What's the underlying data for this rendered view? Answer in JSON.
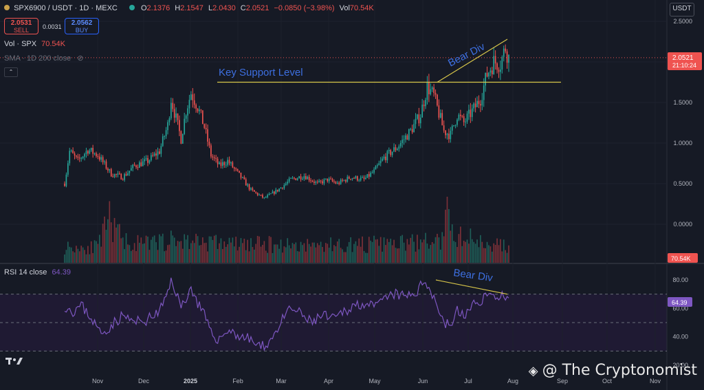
{
  "header": {
    "symbol": "SPX6900 / USDT · 1D · MEXC",
    "o_label": "O",
    "o_value": "2.1376",
    "h_label": "H",
    "h_value": "2.1547",
    "l_label": "L",
    "l_value": "2.0430",
    "c_label": "C",
    "c_value": "2.0521",
    "change": "−0.0850 (−3.98%)",
    "vol_label": "Vol",
    "vol_value": "70.54K"
  },
  "trade": {
    "sell_price": "2.0531",
    "sell_label": "SELL",
    "spread": "0.0031",
    "buy_price": "2.0562",
    "buy_label": "BUY"
  },
  "indicators": {
    "vol_label": "Vol · SPX",
    "vol_value": "70.54K",
    "sma_label": "SMA · 1D 200 close",
    "rsi_label": "RSI 14 close",
    "rsi_value": "64.39"
  },
  "unit_button": "USDT",
  "price_badge": {
    "price": "2.0521",
    "countdown": "21:10:24"
  },
  "volume_badge": "70.54K",
  "rsi_badge": "64.39",
  "watermark": "@ The Cryptonomist",
  "colors": {
    "up": "#26a69a",
    "down": "#ef5350",
    "trendline": "#d9c74a",
    "annotation": "#3d6fe0",
    "rsi_line": "#7e57c2"
  },
  "chart_data": {
    "type": "candlestick",
    "price_axis": {
      "ticks": [
        "2.5000",
        "2.0000",
        "1.5000",
        "1.0000",
        "0.5000",
        "0.0000"
      ],
      "ylim": [
        -0.2,
        2.5
      ]
    },
    "rsi_axis": {
      "ticks": [
        "80.00",
        "60.00",
        "40.00",
        "20.00"
      ],
      "upper_band": 70,
      "middle_band": 50,
      "lower_band": 30
    },
    "x_axis": {
      "ticks": [
        "Nov",
        "Dec",
        "2025",
        "Feb",
        "Mar",
        "Apr",
        "May",
        "Jun",
        "Jul",
        "Aug",
        "Sep",
        "Oct",
        "Nov"
      ]
    },
    "annotations": [
      {
        "text": "Key Support Level"
      },
      {
        "text": "Bear Div"
      },
      {
        "text": "Bear Div"
      }
    ],
    "price_keypoints": [
      [
        0,
        0.5
      ],
      [
        3,
        0.9
      ],
      [
        8,
        0.78
      ],
      [
        14,
        0.92
      ],
      [
        20,
        0.85
      ],
      [
        28,
        0.62
      ],
      [
        35,
        0.58
      ],
      [
        42,
        0.72
      ],
      [
        50,
        0.78
      ],
      [
        57,
        0.9
      ],
      [
        62,
        1.22
      ],
      [
        64,
        1.55
      ],
      [
        67,
        1.3
      ],
      [
        70,
        1.05
      ],
      [
        73,
        1.4
      ],
      [
        76,
        1.62
      ],
      [
        80,
        1.45
      ],
      [
        84,
        1.2
      ],
      [
        88,
        0.85
      ],
      [
        93,
        0.72
      ],
      [
        98,
        0.78
      ],
      [
        106,
        0.58
      ],
      [
        112,
        0.42
      ],
      [
        120,
        0.32
      ],
      [
        128,
        0.42
      ],
      [
        136,
        0.55
      ],
      [
        144,
        0.6
      ],
      [
        152,
        0.5
      ],
      [
        158,
        0.55
      ],
      [
        164,
        0.5
      ],
      [
        172,
        0.58
      ],
      [
        180,
        0.55
      ],
      [
        186,
        0.65
      ],
      [
        192,
        0.82
      ],
      [
        200,
        0.95
      ],
      [
        208,
        1.15
      ],
      [
        214,
        1.35
      ],
      [
        218,
        1.7
      ],
      [
        222,
        1.58
      ],
      [
        228,
        1.15
      ],
      [
        232,
        1.1
      ],
      [
        236,
        1.35
      ],
      [
        240,
        1.25
      ],
      [
        246,
        1.42
      ],
      [
        250,
        1.55
      ],
      [
        254,
        1.85
      ],
      [
        258,
        2.0
      ],
      [
        262,
        1.98
      ],
      [
        265,
        2.18
      ],
      [
        267,
        2.05
      ]
    ],
    "volume_keypoints": [
      [
        0,
        0.25
      ],
      [
        20,
        0.25
      ],
      [
        28,
        0.75
      ],
      [
        30,
        0.5
      ],
      [
        40,
        0.3
      ],
      [
        50,
        0.3
      ],
      [
        60,
        0.35
      ],
      [
        80,
        0.35
      ],
      [
        100,
        0.3
      ],
      [
        150,
        0.28
      ],
      [
        200,
        0.3
      ],
      [
        228,
        0.35
      ],
      [
        230,
        1.0
      ],
      [
        232,
        0.45
      ],
      [
        267,
        0.25
      ]
    ],
    "rsi_keypoints": [
      [
        0,
        62
      ],
      [
        5,
        58
      ],
      [
        10,
        62
      ],
      [
        15,
        55
      ],
      [
        22,
        42
      ],
      [
        28,
        48
      ],
      [
        35,
        55
      ],
      [
        42,
        50
      ],
      [
        50,
        52
      ],
      [
        57,
        58
      ],
      [
        62,
        70
      ],
      [
        64,
        80
      ],
      [
        67,
        72
      ],
      [
        70,
        60
      ],
      [
        73,
        68
      ],
      [
        76,
        74
      ],
      [
        80,
        64
      ],
      [
        84,
        55
      ],
      [
        88,
        42
      ],
      [
        93,
        38
      ],
      [
        98,
        45
      ],
      [
        106,
        40
      ],
      [
        112,
        38
      ],
      [
        118,
        32
      ],
      [
        124,
        38
      ],
      [
        130,
        50
      ],
      [
        136,
        60
      ],
      [
        142,
        56
      ],
      [
        148,
        50
      ],
      [
        155,
        55
      ],
      [
        162,
        52
      ],
      [
        168,
        58
      ],
      [
        174,
        62
      ],
      [
        180,
        64
      ],
      [
        186,
        60
      ],
      [
        192,
        66
      ],
      [
        198,
        70
      ],
      [
        205,
        68
      ],
      [
        212,
        72
      ],
      [
        217,
        80
      ],
      [
        222,
        68
      ],
      [
        228,
        50
      ],
      [
        232,
        48
      ],
      [
        236,
        58
      ],
      [
        240,
        55
      ],
      [
        246,
        62
      ],
      [
        250,
        66
      ],
      [
        254,
        70
      ],
      [
        258,
        68
      ],
      [
        262,
        70
      ],
      [
        265,
        66
      ],
      [
        267,
        64
      ]
    ]
  }
}
